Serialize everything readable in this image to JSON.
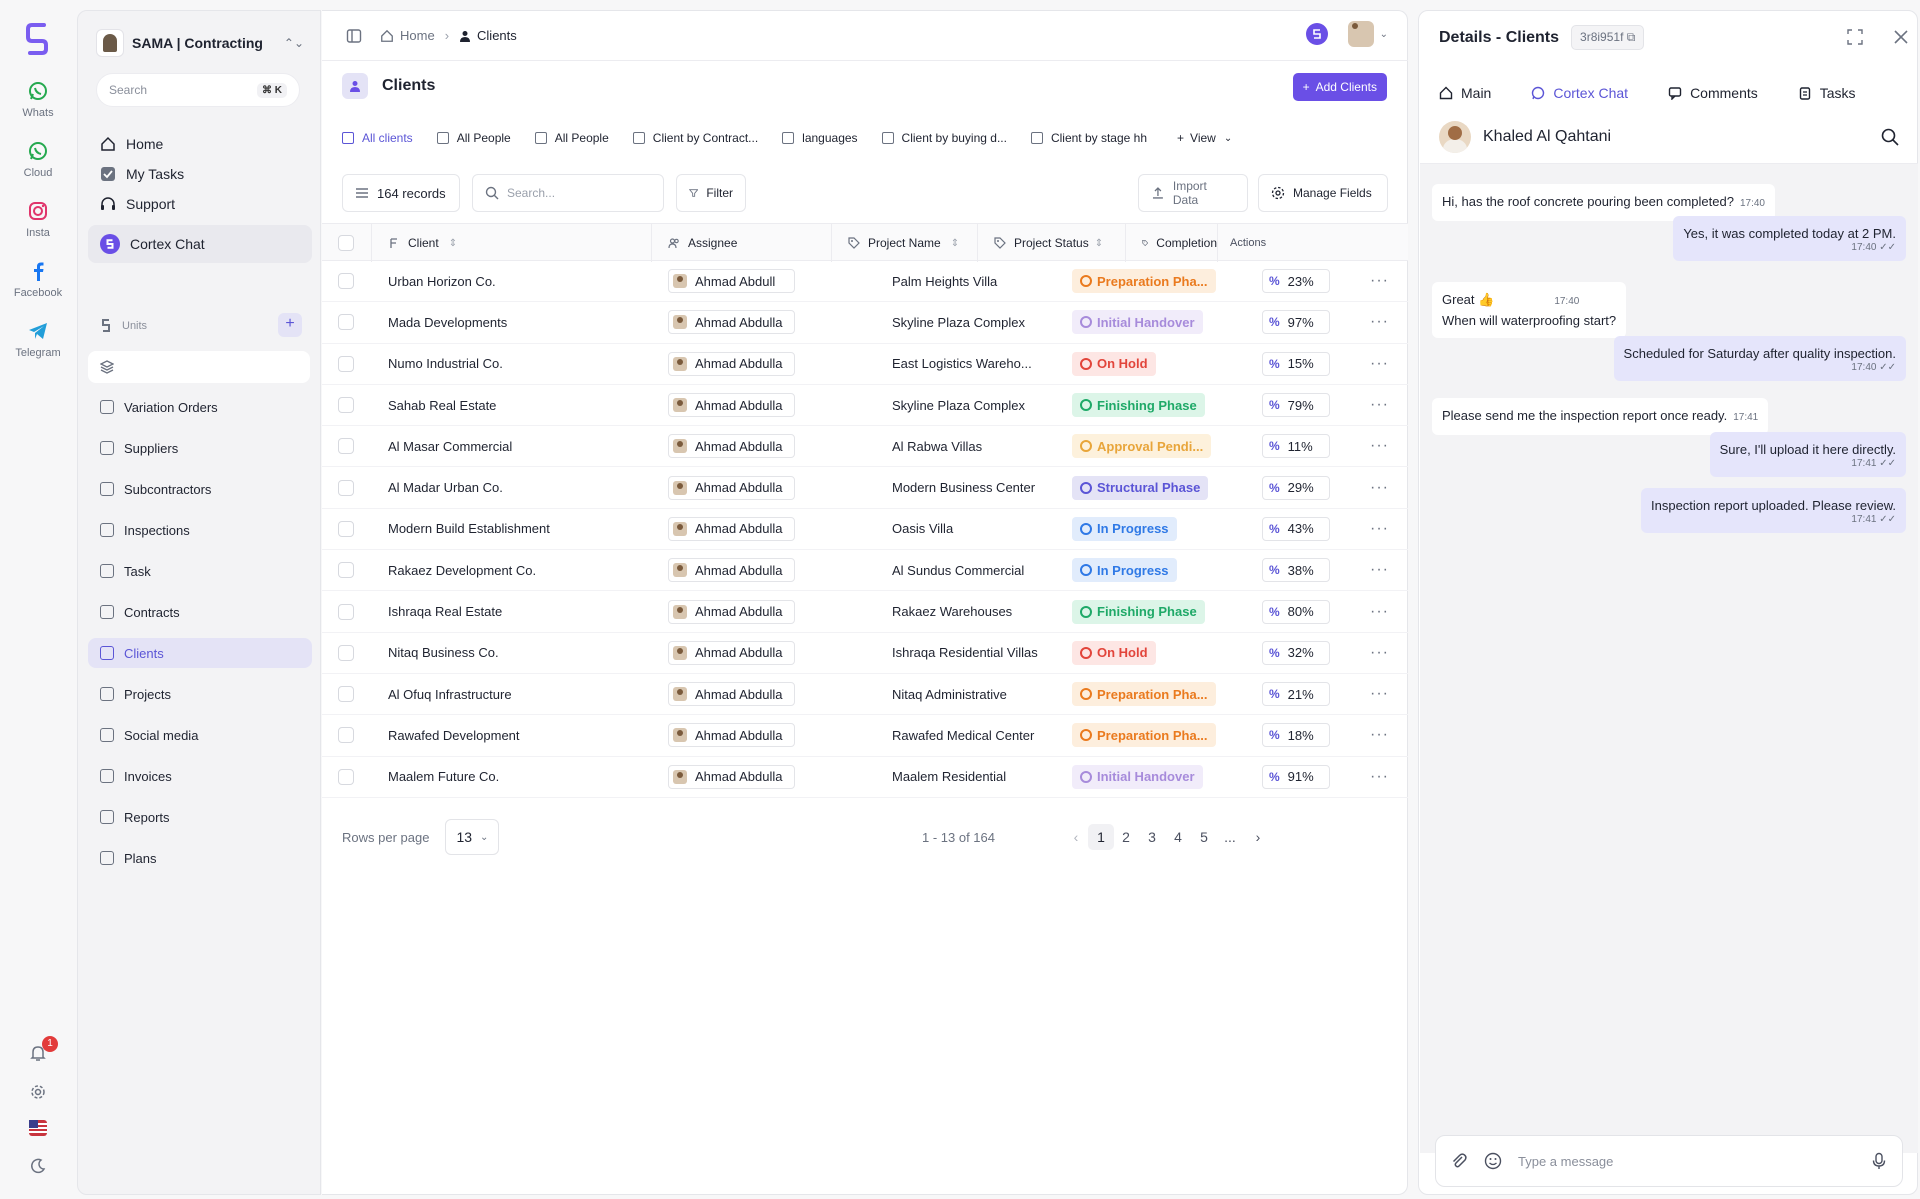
{
  "rail": {
    "items": [
      {
        "label": "Whats",
        "icon": "whatsapp-icon"
      },
      {
        "label": "Cloud",
        "icon": "whatsapp-cloud-icon"
      },
      {
        "label": "Insta",
        "icon": "instagram-icon"
      },
      {
        "label": "Facebook",
        "icon": "facebook-icon"
      },
      {
        "label": "Telegram",
        "icon": "telegram-icon"
      }
    ],
    "notification_count": "1"
  },
  "sidebar": {
    "workspace": "SAMA | Contracting",
    "search_placeholder": "Search",
    "search_shortcut": "⌘ K",
    "primary": [
      {
        "label": "Home",
        "icon": "home-icon"
      },
      {
        "label": "My Tasks",
        "icon": "check-square-icon"
      },
      {
        "label": "Support",
        "icon": "headset-icon"
      }
    ],
    "cortex": "Cortex Chat",
    "units_label": "Units",
    "items": [
      {
        "label": "Variation Orders",
        "icon": "git-compare-icon"
      },
      {
        "label": "Suppliers",
        "icon": "layers-icon"
      },
      {
        "label": "Subcontractors",
        "icon": "play-icon"
      },
      {
        "label": "Inspections",
        "icon": "tag-icon"
      },
      {
        "label": "Task",
        "icon": "calendar-icon"
      },
      {
        "label": "Contracts",
        "icon": "pen-icon"
      },
      {
        "label": "Clients",
        "icon": "user-icon"
      },
      {
        "label": "Projects",
        "icon": "file-icon"
      },
      {
        "label": "Social media",
        "icon": "broadcast-icon"
      },
      {
        "label": "Invoices",
        "icon": "folder-icon"
      },
      {
        "label": "Reports",
        "icon": "report-icon"
      },
      {
        "label": "Plans",
        "icon": "plans-icon"
      }
    ]
  },
  "breadcrumb": {
    "home": "Home",
    "current": "Clients"
  },
  "page": {
    "title": "Clients",
    "add_button": "Add Clients"
  },
  "views": [
    "All clients",
    "All People",
    "All People",
    "Client by Contract...",
    "languages",
    "Client by buying d...",
    "Client by stage hh"
  ],
  "view_button": "View",
  "toolbar": {
    "records": "164 records",
    "search_placeholder": "Search...",
    "filter": "Filter",
    "import": "Import Data",
    "manage": "Manage Fields"
  },
  "table": {
    "headers": {
      "client": "Client",
      "assignee": "Assignee",
      "project": "Project Name",
      "status": "Project Status",
      "completion": "Completion",
      "actions": "Actions"
    },
    "rows": [
      {
        "client": "Urban Horizon Co.",
        "assignee": "Ahmad Abdull",
        "project": "Palm Heights Villa",
        "status": "Preparation Pha...",
        "completion": "23%"
      },
      {
        "client": "Mada Developments",
        "assignee": "Ahmad Abdulla",
        "project": "Skyline Plaza Complex",
        "status": "Initial Handover",
        "completion": "97%"
      },
      {
        "client": "Numo Industrial Co.",
        "assignee": "Ahmad Abdulla",
        "project": "East Logistics Wareho...",
        "status": "On Hold",
        "completion": "15%"
      },
      {
        "client": "Sahab Real Estate",
        "assignee": "Ahmad Abdulla",
        "project": "Skyline Plaza Complex",
        "status": "Finishing Phase",
        "completion": "79%"
      },
      {
        "client": "Al Masar Commercial",
        "assignee": "Ahmad Abdulla",
        "project": "Al Rabwa Villas",
        "status": "Approval Pendi...",
        "completion": "11%"
      },
      {
        "client": "Al Madar Urban Co.",
        "assignee": "Ahmad Abdulla",
        "project": "Modern Business Center",
        "status": "Structural Phase",
        "completion": "29%"
      },
      {
        "client": "Modern Build Establishment",
        "assignee": "Ahmad Abdulla",
        "project": "Oasis Villa",
        "status": "In Progress",
        "completion": "43%"
      },
      {
        "client": "Rakaez Development Co.",
        "assignee": "Ahmad Abdulla",
        "project": "Al Sundus Commercial",
        "status": "In Progress",
        "completion": "38%"
      },
      {
        "client": "Ishraqa Real Estate",
        "assignee": "Ahmad Abdulla",
        "project": "Rakaez Warehouses",
        "status": "Finishing Phase",
        "completion": "80%"
      },
      {
        "client": "Nitaq Business Co.",
        "assignee": "Ahmad Abdulla",
        "project": "Ishraqa Residential Villas",
        "status": "On Hold",
        "completion": "32%"
      },
      {
        "client": "Al Ofuq Infrastructure",
        "assignee": "Ahmad Abdulla",
        "project": "Nitaq Administrative",
        "status": "Preparation Pha...",
        "completion": "21%"
      },
      {
        "client": "Rawafed Development",
        "assignee": "Ahmad Abdulla",
        "project": "Rawafed Medical Center",
        "status": "Preparation Pha...",
        "completion": "18%"
      },
      {
        "client": "Maalem Future Co.",
        "assignee": "Ahmad Abdulla",
        "project": "Maalem Residential",
        "status": "Initial Handover",
        "completion": "91%"
      }
    ]
  },
  "status_colors": {
    "Preparation Pha...": {
      "fg": "#ea7a1e",
      "bg": "#fdeedd"
    },
    "Initial Handover": {
      "fg": "#a78bdb",
      "bg": "#f1ecfa"
    },
    "On Hold": {
      "fg": "#e2453b",
      "bg": "#fde6e4"
    },
    "Finishing Phase": {
      "fg": "#1fa968",
      "bg": "#dcf5e8"
    },
    "Approval Pendi...": {
      "fg": "#e8a53a",
      "bg": "#fdf1dc"
    },
    "Structural Phase": {
      "fg": "#5b55d6",
      "bg": "#e4e3f6"
    },
    "In Progress": {
      "fg": "#2f79e6",
      "bg": "#e1ecfc"
    }
  },
  "pager": {
    "rows_label": "Rows per page",
    "rows_value": "13",
    "range": "1 - 13 of 164",
    "pages": [
      "1",
      "2",
      "3",
      "4",
      "5",
      "..."
    ]
  },
  "panel": {
    "title": "Details - Clients",
    "id": "3r8i951f",
    "tabs": [
      "Main",
      "Cortex Chat",
      "Comments",
      "Tasks"
    ],
    "contact": "Khaled Al Qahtani",
    "composer_placeholder": "Type a message",
    "messages": [
      {
        "dir": "in",
        "text": "Hi, has the roof concrete pouring been completed?",
        "time": "17:40"
      },
      {
        "dir": "out",
        "text": "Yes, it was completed today at 2 PM.",
        "time": "17:40"
      },
      {
        "dir": "in",
        "text": "Great 👍",
        "text2": "When will waterproofing start?",
        "time": "17:40"
      },
      {
        "dir": "out",
        "text": "Scheduled for Saturday after quality inspection.",
        "time": "17:40"
      },
      {
        "dir": "in",
        "text": "Please send me the inspection report once ready.",
        "time": "17:41"
      },
      {
        "dir": "out",
        "text": "Sure, I'll upload it here directly.",
        "time": "17:41"
      },
      {
        "dir": "out",
        "text": "Inspection report uploaded. Please review.",
        "time": "17:41"
      }
    ]
  },
  "colors": {
    "accent": "#6a4fe6",
    "accent_soft": "#e4e3f6"
  }
}
